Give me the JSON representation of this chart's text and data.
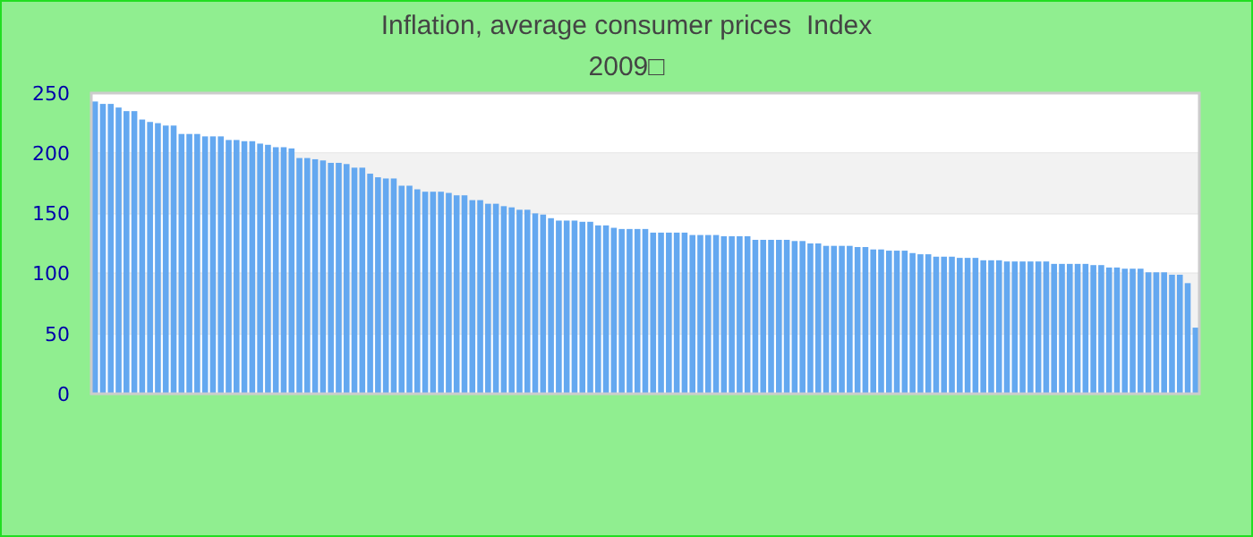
{
  "chart_data": {
    "type": "bar",
    "title": "Inflation, average consumer prices  Index",
    "subtitle": "2009□",
    "color": "#64a8f0",
    "categories": [
      null,
      null,
      null,
      null,
      null,
      null,
      null,
      null,
      null,
      null,
      null,
      null,
      null,
      null,
      null,
      null,
      null,
      null,
      null,
      null,
      null,
      null,
      null,
      null,
      null,
      null,
      null,
      null,
      null,
      null,
      null,
      null,
      null,
      null,
      null,
      null,
      null,
      null,
      null,
      null,
      null,
      null,
      null,
      null,
      null,
      null,
      null,
      null,
      null,
      null,
      null,
      null,
      null,
      null,
      null,
      null,
      null,
      null,
      null,
      null,
      null,
      null,
      null,
      null,
      null,
      null,
      null,
      null,
      null,
      null,
      null,
      null,
      null,
      null,
      null,
      null,
      null,
      null,
      null,
      null,
      null,
      null,
      null,
      null,
      null,
      null,
      null,
      null,
      null,
      null,
      null,
      null,
      null,
      null,
      null,
      null,
      null,
      null,
      null,
      null,
      null,
      null,
      null,
      null,
      null,
      null,
      null,
      null,
      null,
      null,
      null,
      null,
      null,
      null,
      null,
      null,
      null,
      null,
      null,
      null,
      null,
      null,
      null,
      null,
      null,
      null,
      null,
      null,
      null,
      null,
      null,
      null,
      null,
      null,
      null,
      null,
      null,
      null,
      null,
      null,
      null
    ],
    "values": [
      243,
      241,
      241,
      238,
      235,
      235,
      228,
      226,
      225,
      223,
      223,
      216,
      216,
      216,
      214,
      214,
      214,
      211,
      211,
      210,
      210,
      208,
      207,
      205,
      205,
      204,
      196,
      196,
      195,
      194,
      192,
      192,
      191,
      188,
      188,
      183,
      180,
      179,
      179,
      173,
      173,
      170,
      168,
      168,
      168,
      167,
      165,
      165,
      161,
      161,
      158,
      158,
      156,
      155,
      153,
      153,
      150,
      149,
      146,
      144,
      144,
      144,
      143,
      143,
      140,
      140,
      138,
      137,
      137,
      137,
      137,
      134,
      134,
      134,
      134,
      134,
      132,
      132,
      132,
      132,
      131,
      131,
      131,
      131,
      128,
      128,
      128,
      128,
      128,
      127,
      127,
      125,
      125,
      123,
      123,
      123,
      123,
      122,
      122,
      120,
      120,
      119,
      119,
      119,
      117,
      116,
      116,
      114,
      114,
      114,
      113,
      113,
      113,
      111,
      111,
      111,
      110,
      110,
      110,
      110,
      110,
      110,
      108,
      108,
      108,
      108,
      108,
      107,
      107,
      105,
      105,
      104,
      104,
      104,
      101,
      101,
      101,
      99,
      99,
      92,
      55
    ],
    "ylim": [
      0,
      250
    ],
    "yticks": [
      0,
      50,
      100,
      150,
      200,
      250
    ],
    "grid": "y"
  }
}
